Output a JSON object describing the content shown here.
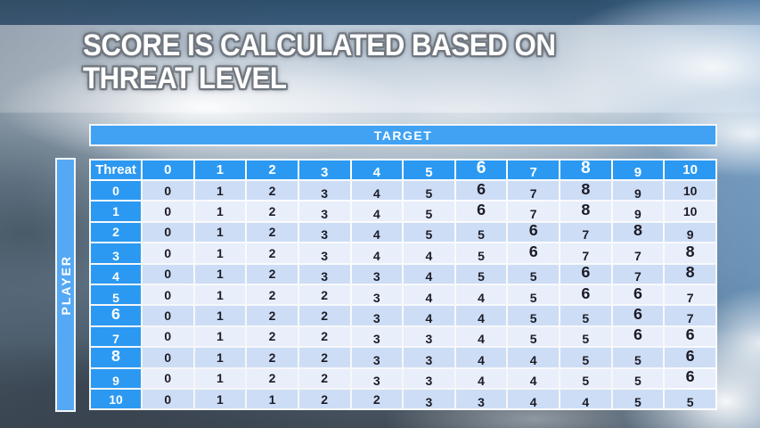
{
  "slide": {
    "title_line1": "SCORE IS CALCULATED BASED ON",
    "title_line2": "THREAT LEVEL"
  },
  "chart_data": {
    "type": "table",
    "title": "SCORE IS CALCULATED BASED ON THREAT LEVEL",
    "x_axis_label": "TARGET",
    "y_axis_label": "PLAYER",
    "corner_label": "Threat",
    "columns": [
      "0",
      "1",
      "2",
      "3",
      "4",
      "5",
      "6",
      "7",
      "8",
      "9",
      "10"
    ],
    "rows": [
      {
        "label": "0",
        "values": [
          0,
          1,
          2,
          3,
          4,
          5,
          6,
          7,
          8,
          9,
          10
        ]
      },
      {
        "label": "1",
        "values": [
          0,
          1,
          2,
          3,
          4,
          5,
          6,
          7,
          8,
          9,
          10
        ]
      },
      {
        "label": "2",
        "values": [
          0,
          1,
          2,
          3,
          4,
          5,
          5,
          6,
          7,
          8,
          9
        ]
      },
      {
        "label": "3",
        "values": [
          0,
          1,
          2,
          3,
          4,
          4,
          5,
          6,
          7,
          7,
          8
        ]
      },
      {
        "label": "4",
        "values": [
          0,
          1,
          2,
          3,
          3,
          4,
          5,
          5,
          6,
          7,
          8
        ]
      },
      {
        "label": "5",
        "values": [
          0,
          1,
          2,
          2,
          3,
          4,
          4,
          5,
          6,
          6,
          7
        ]
      },
      {
        "label": "6",
        "values": [
          0,
          1,
          2,
          2,
          3,
          4,
          4,
          5,
          5,
          6,
          7
        ]
      },
      {
        "label": "7",
        "values": [
          0,
          1,
          2,
          2,
          3,
          3,
          4,
          5,
          5,
          6,
          6
        ]
      },
      {
        "label": "8",
        "values": [
          0,
          1,
          2,
          2,
          3,
          3,
          4,
          4,
          5,
          5,
          6
        ]
      },
      {
        "label": "9",
        "values": [
          0,
          1,
          2,
          2,
          3,
          3,
          4,
          4,
          5,
          5,
          6
        ]
      },
      {
        "label": "10",
        "values": [
          0,
          1,
          1,
          2,
          2,
          3,
          3,
          4,
          4,
          5,
          5
        ]
      }
    ]
  },
  "colors": {
    "header_blue": "#2b99f2",
    "bar_blue": "#4aa5f3",
    "row_stripe_dark": "#cdddf6",
    "row_stripe_light": "#e9eefb",
    "cell_text": "#1c1c26",
    "top_strip": "#355677",
    "title_text": "#ffffff"
  }
}
